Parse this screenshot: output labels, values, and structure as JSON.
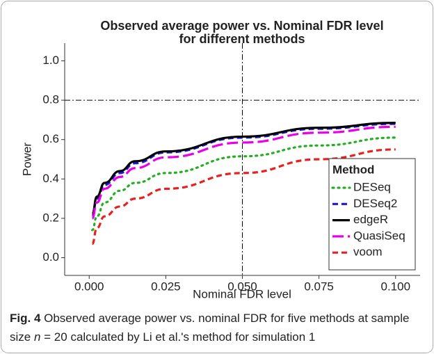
{
  "chart_data": {
    "type": "line",
    "title": [
      "Observed average power vs. Nominal FDR level",
      "for different methods"
    ],
    "x_label": "Nominal FDR level",
    "y_label": "Power",
    "x": [
      0.001,
      0.0025,
      0.005,
      0.01,
      0.015,
      0.025,
      0.05,
      0.075,
      0.1
    ],
    "series": [
      {
        "name": "DESeq",
        "color": "#22b022",
        "linestyle": "dotted",
        "values": [
          0.14,
          0.21,
          0.28,
          0.34,
          0.38,
          0.43,
          0.515,
          0.57,
          0.61
        ]
      },
      {
        "name": "DESeq2",
        "color": "#1a1adc",
        "linestyle": "dashed",
        "values": [
          0.21,
          0.3,
          0.37,
          0.43,
          0.48,
          0.535,
          0.61,
          0.655,
          0.68
        ]
      },
      {
        "name": "edgeR",
        "color": "#000000",
        "linestyle": "solid",
        "values": [
          0.22,
          0.31,
          0.38,
          0.44,
          0.49,
          0.54,
          0.615,
          0.66,
          0.685
        ]
      },
      {
        "name": "QuasiSeq",
        "color": "#e800e8",
        "linestyle": "longdash",
        "values": [
          0.2,
          0.28,
          0.35,
          0.41,
          0.455,
          0.51,
          0.585,
          0.635,
          0.665
        ]
      },
      {
        "name": "voom",
        "color": "#e82020",
        "linestyle": "dashed",
        "values": [
          0.07,
          0.15,
          0.21,
          0.26,
          0.3,
          0.35,
          0.43,
          0.5,
          0.55
        ]
      }
    ],
    "legend_title": "Method",
    "legend": "right",
    "hline": 0.8,
    "vline": 0.05,
    "xlim": [
      -0.008,
      0.108
    ],
    "xticks": [
      {
        "value": 0,
        "label": "0.000"
      },
      {
        "value": 0.025,
        "label": "0.025"
      },
      {
        "value": 0.05,
        "label": "0.050"
      },
      {
        "value": 0.075,
        "label": "0.075"
      },
      {
        "value": 0.1,
        "label": "0.100"
      }
    ],
    "ylim": [
      -0.09,
      1.09
    ],
    "yticks": [
      {
        "value": 0,
        "label": "0.0"
      },
      {
        "value": 0.2,
        "label": "0.2"
      },
      {
        "value": 0.4,
        "label": "0.4"
      },
      {
        "value": 0.6,
        "label": "0.6"
      },
      {
        "value": 0.8,
        "label": "0.8"
      },
      {
        "value": 1,
        "label": "1.0"
      }
    ],
    "grid": false
  },
  "caption": {
    "label": "Fig. 4",
    "text_before": " Observed average power vs. nominal FDR for five methods at sample size ",
    "variable": "n",
    "text_after": " = 20 calculated by Li et al.'s method for simulation 1"
  }
}
